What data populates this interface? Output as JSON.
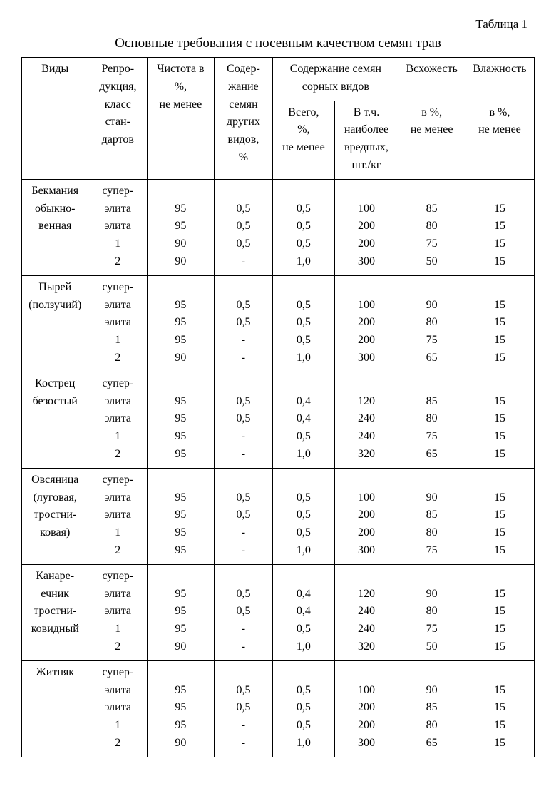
{
  "table_label": "Таблица 1",
  "caption": "Основные требования с посевным качеством семян трав",
  "headers": {
    "vid": "Виды",
    "rep": "Репро-\nдукция,\nкласс\nстан-\nдартов",
    "chist": "Чистота в\n%,\nне менее",
    "soder": "Содер-\nжание\nсемян\nдругих\nвидов,\n%",
    "sorn_group": "Содержание семян\nсорных видов",
    "sorn_total": "Всего,\n%,\nне менее",
    "sorn_harm": "В т.ч.\nнаиболее\nвредных,\nшт./кг",
    "vshod": "Всхожесть",
    "vshod_sub": "в %,\nне менее",
    "vlazh": "Влажность",
    "vlazh_sub": "в %,\nне менее"
  },
  "rep_block": "супер-\nэлита\nэлита\n1\n2",
  "species": [
    {
      "name": "Бекмания\nобыкно-\nвенная",
      "chist": "\n95\n95\n90\n90",
      "soder": "\n0,5\n0,5\n0,5\n-",
      "sorn_total": "\n0,5\n0,5\n0,5\n1,0",
      "sorn_harm": "\n100\n200\n200\n300",
      "vshod": "\n85\n80\n75\n50",
      "vlazh": "\n15\n15\n15\n15"
    },
    {
      "name": "Пырей\n(ползучий)",
      "chist": "\n95\n95\n95\n90",
      "soder": "\n0,5\n0,5\n-\n-",
      "sorn_total": "\n0,5\n0,5\n0,5\n1,0",
      "sorn_harm": "\n100\n200\n200\n300",
      "vshod": "\n90\n80\n75\n65",
      "vlazh": "\n15\n15\n15\n15"
    },
    {
      "name": "Кострец\nбезостый",
      "chist": "\n95\n95\n95\n95",
      "soder": "\n0,5\n0,5\n-\n-",
      "sorn_total": "\n0,4\n0,4\n0,5\n1,0",
      "sorn_harm": "\n120\n240\n240\n320",
      "vshod": "\n85\n80\n75\n65",
      "vlazh": "\n15\n15\n15\n15"
    },
    {
      "name": "Овсяница\n(луговая,\nтростни-\nковая)",
      "chist": "\n95\n95\n95\n95",
      "soder": "\n0,5\n0,5\n-\n-",
      "sorn_total": "\n0,5\n0,5\n0,5\n1,0",
      "sorn_harm": "\n100\n200\n200\n300",
      "vshod": "\n90\n85\n80\n75",
      "vlazh": "\n15\n15\n15\n15"
    },
    {
      "name": "Канаре-\nечник\nтростни-\nковидный",
      "chist": "\n95\n95\n95\n90",
      "soder": "\n0,5\n0,5\n-\n-",
      "sorn_total": "\n0,4\n0,4\n0,5\n1,0",
      "sorn_harm": "\n120\n240\n240\n320",
      "vshod": "\n90\n80\n75\n50",
      "vlazh": "\n15\n15\n15\n15"
    },
    {
      "name": "Житняк",
      "chist": "\n95\n95\n95\n90",
      "soder": "\n0,5\n0,5\n-\n-",
      "sorn_total": "\n0,5\n0,5\n0,5\n1,0",
      "sorn_harm": "\n100\n200\n200\n300",
      "vshod": "\n90\n85\n80\n65",
      "vlazh": "\n15\n15\n15\n15"
    }
  ]
}
